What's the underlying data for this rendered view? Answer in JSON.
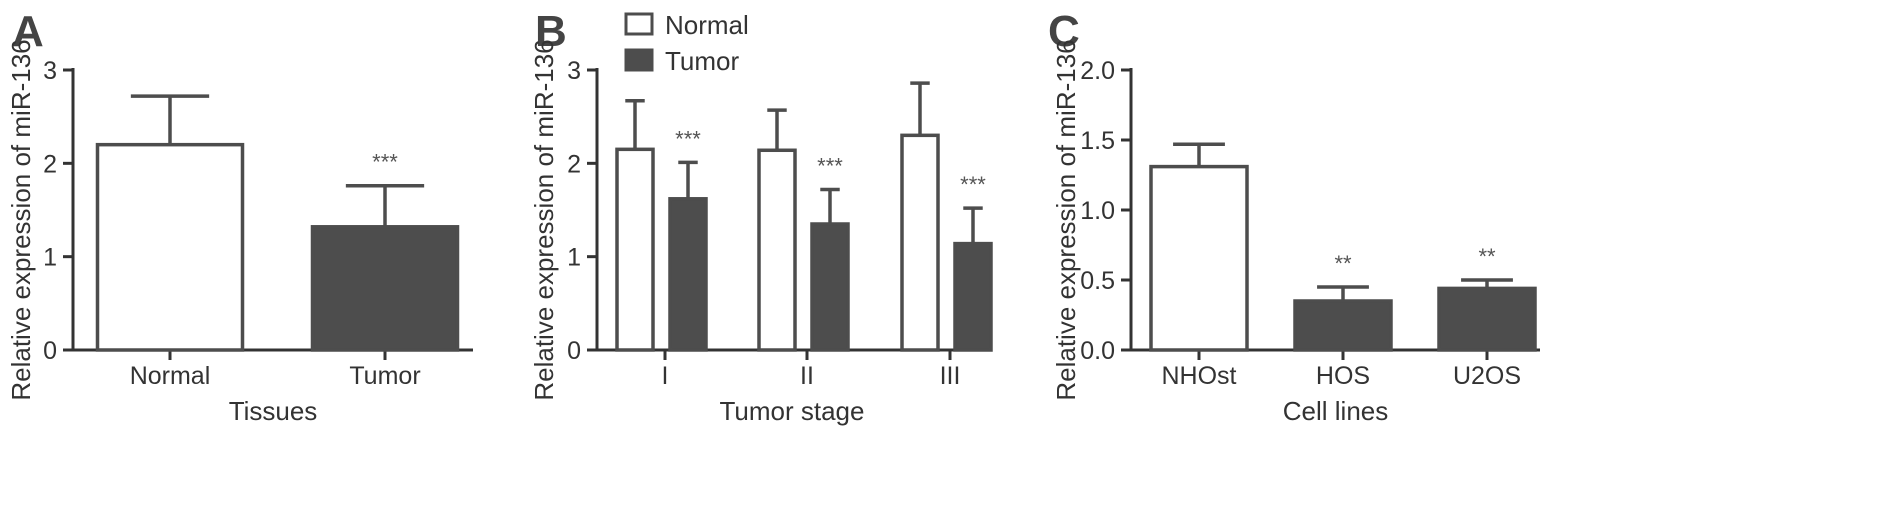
{
  "colors": {
    "normal_fill": "#ffffff",
    "tumor_fill": "#4d4d4d",
    "outline": "#4d4d4d"
  },
  "chart_data": [
    {
      "panel": "A",
      "type": "bar",
      "xlabel": "Tissues",
      "ylabel": "Relative expression of miR-136",
      "ylim": [
        0,
        3
      ],
      "yticks": [
        "0",
        "1",
        "2",
        "3"
      ],
      "categories": [
        "Normal",
        "Tumor"
      ],
      "values": [
        2.2,
        1.32
      ],
      "errors": [
        0.52,
        0.44
      ],
      "fills": [
        "normal",
        "tumor"
      ],
      "significance": [
        "",
        "***"
      ]
    },
    {
      "panel": "B",
      "type": "bar",
      "xlabel": "Tumor stage",
      "ylabel": "Relative expression of miR-136",
      "ylim": [
        0,
        3
      ],
      "yticks": [
        "0",
        "1",
        "2",
        "3"
      ],
      "categories": [
        "I",
        "II",
        "III"
      ],
      "legend": {
        "position": "top-left",
        "entries": [
          "Normal",
          "Tumor"
        ]
      },
      "series": [
        {
          "name": "Normal",
          "values": [
            2.15,
            2.14,
            2.3
          ],
          "errors": [
            0.52,
            0.43,
            0.56
          ],
          "significance": [
            "",
            "",
            ""
          ]
        },
        {
          "name": "Tumor",
          "values": [
            1.62,
            1.35,
            1.14
          ],
          "errors": [
            0.39,
            0.37,
            0.38
          ],
          "significance": [
            "***",
            "***",
            "***"
          ]
        }
      ]
    },
    {
      "panel": "C",
      "type": "bar",
      "xlabel": "Cell lines",
      "ylabel": "Relative expression of miR-136",
      "ylim": [
        0,
        2.0
      ],
      "yticks": [
        "0.0",
        "0.5",
        "1.0",
        "1.5",
        "2.0"
      ],
      "categories": [
        "NHOst",
        "HOS",
        "U2OS"
      ],
      "values": [
        1.31,
        0.35,
        0.44
      ],
      "errors": [
        0.16,
        0.1,
        0.06
      ],
      "fills": [
        "normal",
        "tumor",
        "tumor"
      ],
      "significance": [
        "",
        "**",
        "**"
      ]
    }
  ]
}
